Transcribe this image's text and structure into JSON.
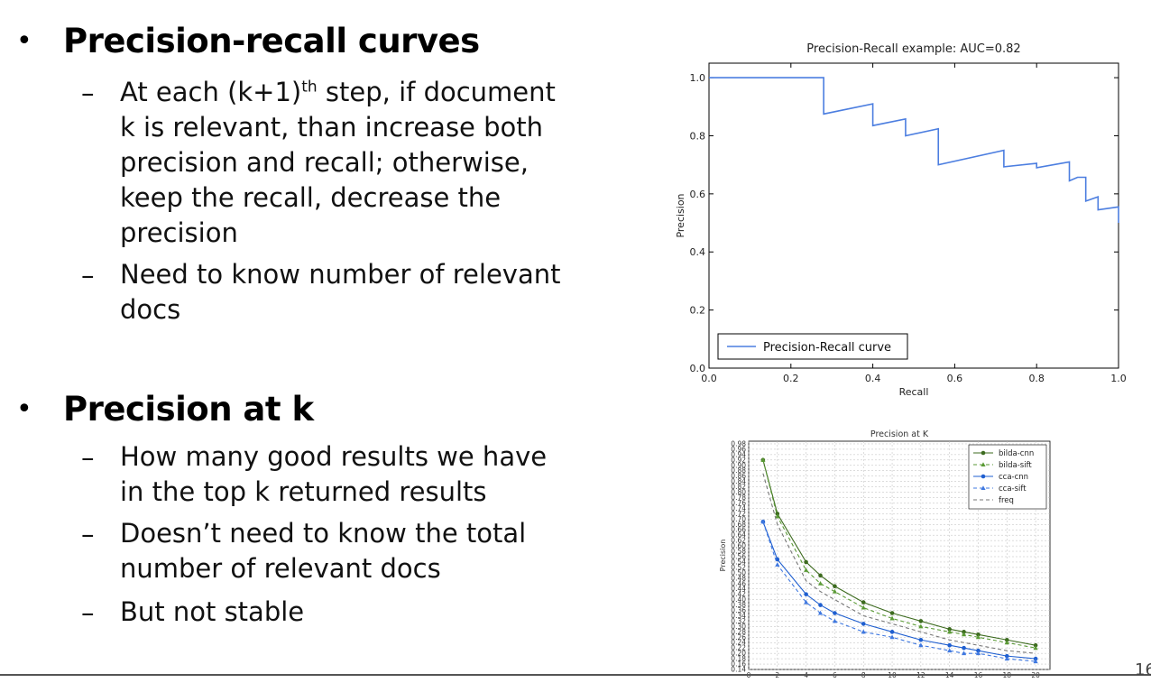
{
  "slide": {
    "sections": [
      {
        "heading": "Precision-recall curves",
        "points": [
          {
            "lines": [
              "At each (k+1)",
              "th",
              " step, if document",
              "k is relevant, than increase both",
              "precision and recall; otherwise,",
              "keep the recall, decrease the",
              "precision"
            ]
          },
          {
            "lines": [
              "Need to know number of relevant",
              "docs"
            ]
          }
        ]
      },
      {
        "heading": "Precision at k",
        "points": [
          {
            "lines": [
              "How many good results we have",
              "in the top k returned results"
            ]
          },
          {
            "lines": [
              "Doesn’t need to know the total",
              "number of relevant docs"
            ]
          },
          {
            "lines": [
              "But not stable"
            ]
          }
        ]
      }
    ],
    "page_number": "16"
  },
  "chart_data": [
    {
      "type": "line",
      "title": "Precision-Recall example: AUC=0.82",
      "xlabel": "Recall",
      "ylabel": "Precision",
      "xlim": [
        0.0,
        1.0
      ],
      "ylim": [
        0.0,
        1.05
      ],
      "xticks": [
        "0.0",
        "0.2",
        "0.4",
        "0.6",
        "0.8",
        "1.0"
      ],
      "yticks": [
        "0.0",
        "0.2",
        "0.4",
        "0.6",
        "0.8",
        "1.0"
      ],
      "grid": false,
      "legend": "lower-left",
      "series": [
        {
          "name": "Precision-Recall curve",
          "color": "#4c7ee0",
          "x": [
            0.0,
            0.28,
            0.28,
            0.4,
            0.4,
            0.48,
            0.48,
            0.56,
            0.56,
            0.72,
            0.72,
            0.8,
            0.8,
            0.86,
            0.88,
            0.88,
            0.9,
            0.92,
            0.92,
            0.95,
            0.95,
            1.0,
            1.0
          ],
          "y": [
            1.0,
            1.0,
            0.875,
            0.91,
            0.835,
            0.858,
            0.8,
            0.824,
            0.7,
            0.75,
            0.693,
            0.705,
            0.69,
            0.705,
            0.71,
            0.645,
            0.657,
            0.657,
            0.575,
            0.59,
            0.545,
            0.555,
            0.5
          ]
        }
      ]
    },
    {
      "type": "line",
      "title": "Precision at K",
      "xlabel": "",
      "ylabel": "Precision",
      "xlim": [
        0,
        21
      ],
      "ylim": [
        0.14,
        0.99
      ],
      "xticks": [
        "0",
        "2",
        "4",
        "6",
        "8",
        "10",
        "12",
        "14",
        "16",
        "18",
        "20"
      ],
      "yticks": [
        "0.14",
        "0.18",
        "0.22",
        "0.26",
        "0.30",
        "0.34",
        "0.38",
        "0.42",
        "0.46",
        "0.50",
        "0.54",
        "0.58",
        "0.62",
        "0.66",
        "0.70",
        "0.74",
        "0.78",
        "0.82",
        "0.86",
        "0.90",
        "0.94",
        "0.98"
      ],
      "yticks_minor": [
        "0.16",
        "0.20",
        "0.24",
        "0.28",
        "0.32",
        "0.36",
        "0.40",
        "0.44",
        "0.48",
        "0.52",
        "0.56",
        "0.60",
        "0.64",
        "0.68",
        "0.72",
        "0.76",
        "0.80",
        "0.84",
        "0.88",
        "0.92",
        "0.96"
      ],
      "grid": true,
      "legend": "top-right",
      "x": [
        1,
        2,
        4,
        5,
        6,
        8,
        10,
        12,
        14,
        15,
        16,
        18,
        20
      ],
      "series": [
        {
          "name": "bilda-cnn",
          "color": "#3d6b1f",
          "marker": "circle",
          "dash": "solid",
          "values": [
            0.92,
            0.72,
            0.54,
            0.49,
            0.45,
            0.39,
            0.35,
            0.32,
            0.29,
            0.28,
            0.27,
            0.25,
            0.23
          ]
        },
        {
          "name": "bilda-sift",
          "color": "#5a9a35",
          "marker": "triangle",
          "dash": "dashed",
          "values": [
            0.92,
            0.71,
            0.51,
            0.46,
            0.43,
            0.37,
            0.33,
            0.3,
            0.28,
            0.27,
            0.26,
            0.24,
            0.22
          ]
        },
        {
          "name": "cca-cnn",
          "color": "#1f5fd0",
          "marker": "circle",
          "dash": "solid",
          "values": [
            0.69,
            0.55,
            0.42,
            0.38,
            0.35,
            0.31,
            0.28,
            0.25,
            0.23,
            0.22,
            0.21,
            0.19,
            0.18
          ]
        },
        {
          "name": "cca-sift",
          "color": "#3f78e0",
          "marker": "triangle",
          "dash": "dashed",
          "values": [
            0.69,
            0.53,
            0.39,
            0.35,
            0.32,
            0.28,
            0.26,
            0.23,
            0.21,
            0.2,
            0.2,
            0.18,
            0.17
          ]
        },
        {
          "name": "freq",
          "color": "#777777",
          "marker": "none",
          "dash": "dashed",
          "values": [
            0.87,
            0.68,
            0.47,
            0.43,
            0.4,
            0.34,
            0.31,
            0.28,
            0.25,
            0.24,
            0.23,
            0.21,
            0.2
          ]
        }
      ]
    }
  ]
}
